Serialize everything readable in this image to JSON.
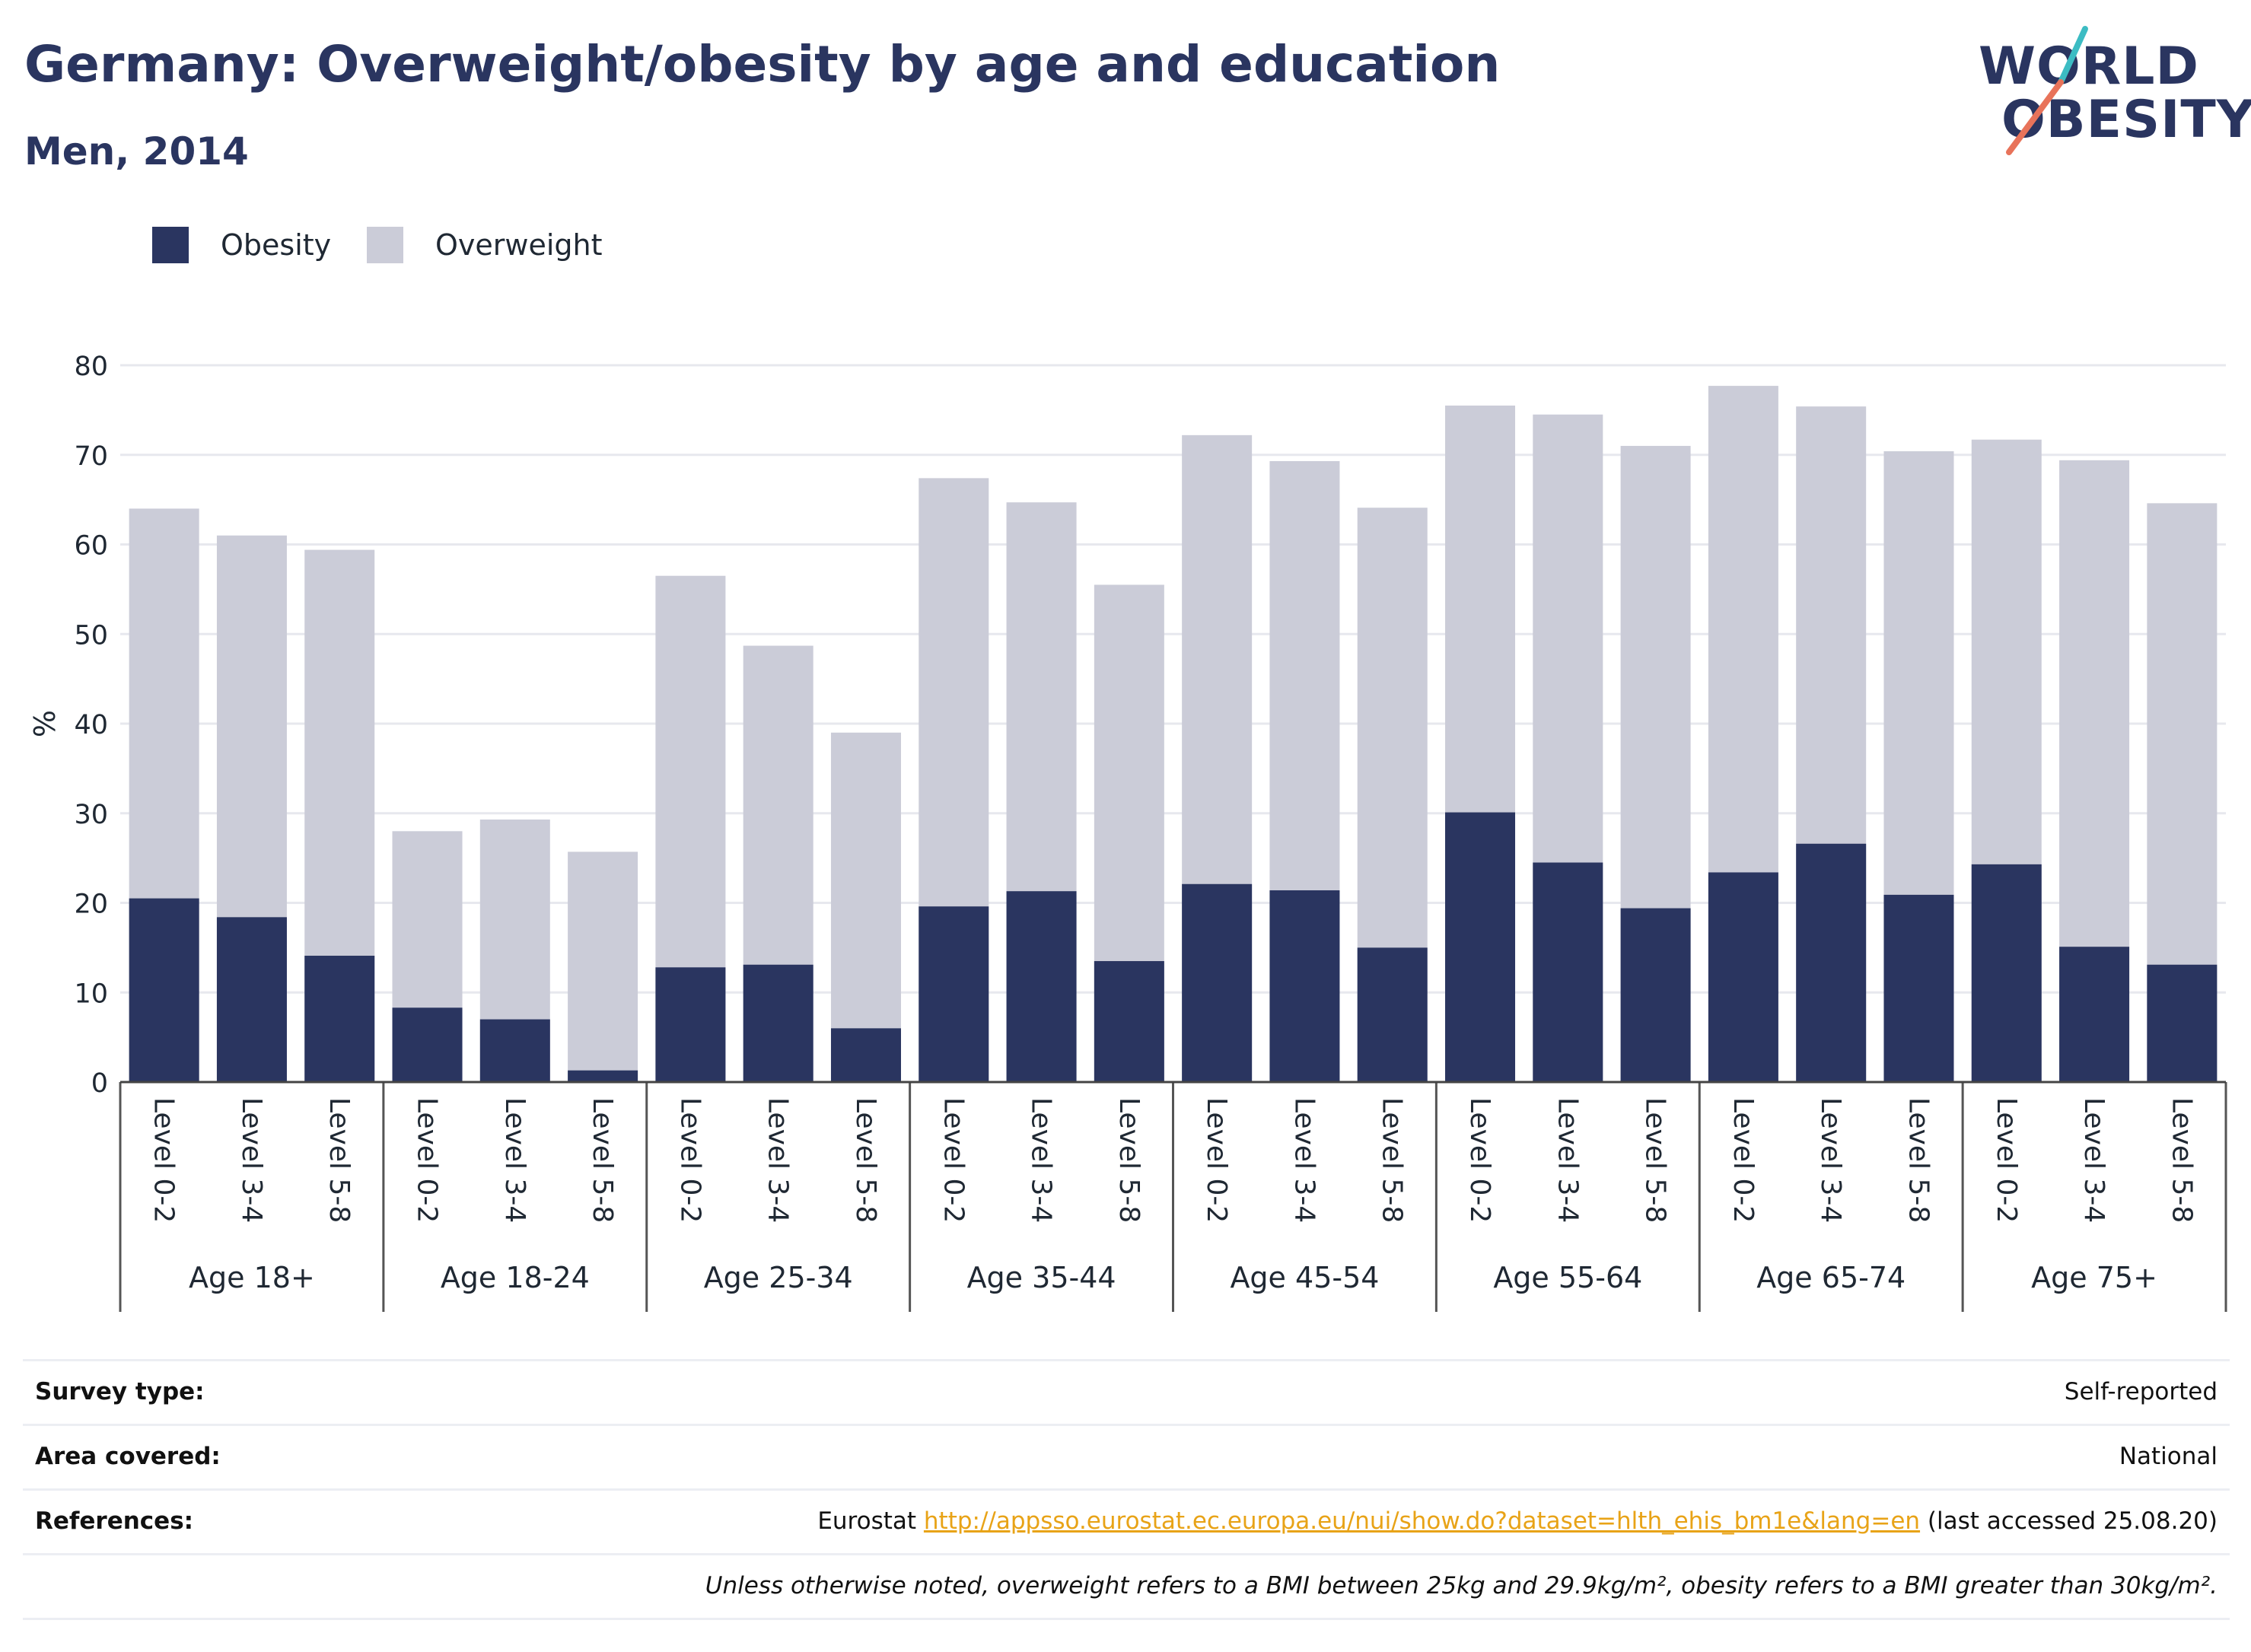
{
  "header": {
    "title": "Germany: Overweight/obesity by age and education",
    "subtitle": "Men, 2014"
  },
  "logo": {
    "line1": "WORLD",
    "line2": "OBESITY"
  },
  "legend": {
    "items": [
      {
        "label": "Obesity",
        "color": "#2a3560"
      },
      {
        "label": "Overweight",
        "color": "#cbccd8"
      }
    ]
  },
  "chart_data": {
    "type": "bar",
    "stacked": false,
    "ylabel": "%",
    "ylim": [
      0,
      80
    ],
    "yticks": [
      0,
      10,
      20,
      30,
      40,
      50,
      60,
      70,
      80
    ],
    "grid": true,
    "legend_position": "top-left",
    "groups": [
      {
        "label": "Age 18+",
        "levels": [
          "Level 0-2",
          "Level 3-4",
          "Level 5-8"
        ],
        "obesity": [
          20.5,
          18.4,
          14.1
        ],
        "overweight": [
          64.0,
          61.0,
          59.4
        ]
      },
      {
        "label": "Age 18-24",
        "levels": [
          "Level 0-2",
          "Level 3-4",
          "Level 5-8"
        ],
        "obesity": [
          8.3,
          7.0,
          1.3
        ],
        "overweight": [
          28.0,
          29.3,
          25.7
        ]
      },
      {
        "label": "Age 25-34",
        "levels": [
          "Level 0-2",
          "Level 3-4",
          "Level 5-8"
        ],
        "obesity": [
          12.8,
          13.1,
          6.0
        ],
        "overweight": [
          56.5,
          48.7,
          39.0
        ]
      },
      {
        "label": "Age 35-44",
        "levels": [
          "Level 0-2",
          "Level 3-4",
          "Level 5-8"
        ],
        "obesity": [
          19.6,
          21.3,
          13.5
        ],
        "overweight": [
          67.4,
          64.7,
          55.5
        ]
      },
      {
        "label": "Age 45-54",
        "levels": [
          "Level 0-2",
          "Level 3-4",
          "Level 5-8"
        ],
        "obesity": [
          22.1,
          21.4,
          15.0
        ],
        "overweight": [
          72.2,
          69.3,
          64.1
        ]
      },
      {
        "label": "Age 55-64",
        "levels": [
          "Level 0-2",
          "Level 3-4",
          "Level 5-8"
        ],
        "obesity": [
          30.1,
          24.5,
          19.4
        ],
        "overweight": [
          75.5,
          74.5,
          71.0
        ]
      },
      {
        "label": "Age 65-74",
        "levels": [
          "Level 0-2",
          "Level 3-4",
          "Level 5-8"
        ],
        "obesity": [
          23.4,
          26.6,
          20.9
        ],
        "overweight": [
          77.7,
          75.4,
          70.4
        ]
      },
      {
        "label": "Age 75+",
        "levels": [
          "Level 0-2",
          "Level 3-4",
          "Level 5-8"
        ],
        "obesity": [
          24.3,
          15.1,
          13.1
        ],
        "overweight": [
          71.7,
          69.4,
          64.6
        ]
      }
    ]
  },
  "footer": {
    "survey_label": "Survey type:",
    "survey_value": "Self-reported",
    "area_label": "Area covered:",
    "area_value": "National",
    "ref_label": "References:",
    "ref_source": "Eurostat",
    "ref_link": "http://appsso.eurostat.ec.europa.eu/nui/show.do?dataset=hlth_ehis_bm1e&lang=en",
    "ref_accessed": "(last accessed 25.08.20)",
    "note": "Unless otherwise noted, overweight refers to a BMI between 25kg and 29.9kg/m², obesity refers to a BMI greater than 30kg/m²."
  }
}
